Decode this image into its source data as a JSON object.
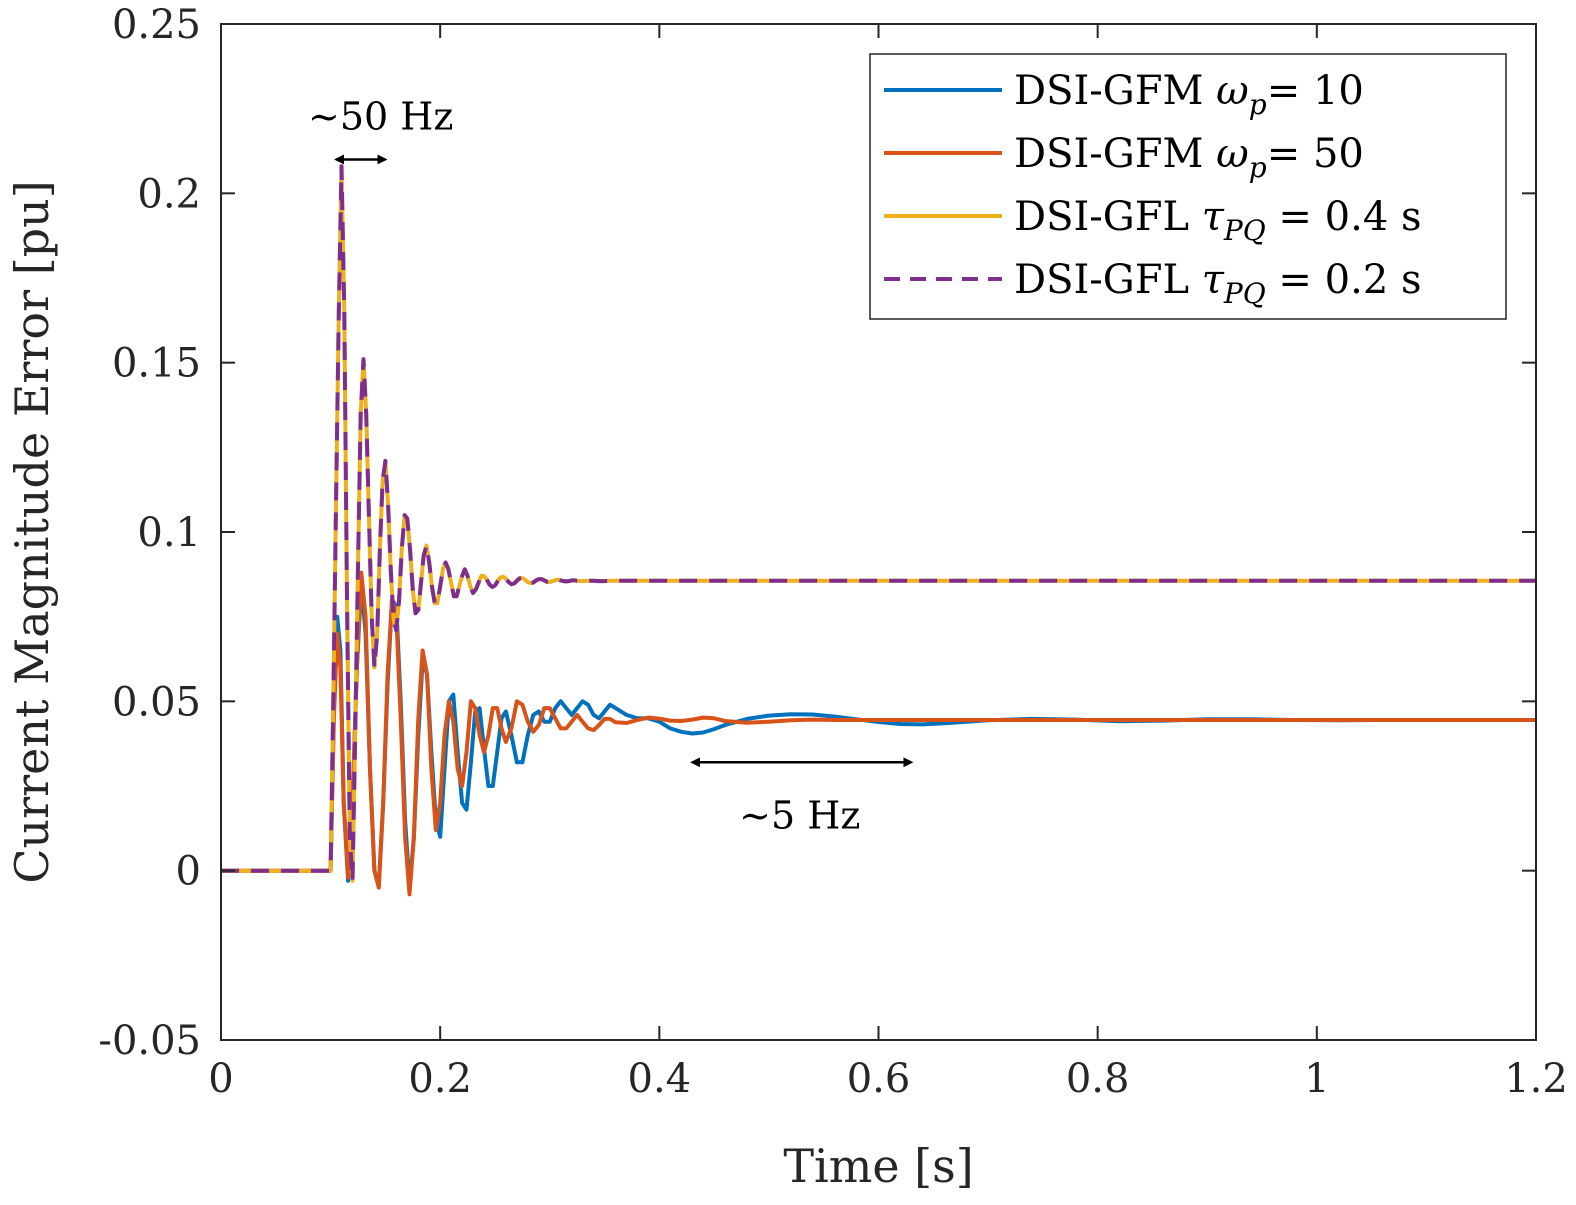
{
  "chart_data": {
    "type": "line",
    "title": "",
    "xlabel": "Time [s]",
    "ylabel": "Current Magnitude Error [pu]",
    "xlim": [
      0,
      1.2
    ],
    "ylim": [
      -0.05,
      0.25
    ],
    "xticks": [
      0,
      0.2,
      0.4,
      0.6,
      0.8,
      1.0,
      1.2
    ],
    "xtick_labels": [
      "0",
      "0.2",
      "0.4",
      "0.6",
      "0.8",
      "1",
      "1.2"
    ],
    "yticks": [
      -0.05,
      0,
      0.05,
      0.1,
      0.15,
      0.2,
      0.25
    ],
    "ytick_labels": [
      "-0.05",
      "0",
      "0.05",
      "0.1",
      "0.15",
      "0.2",
      "0.25"
    ],
    "grid": false,
    "legend_position": "top-right",
    "series": [
      {
        "name": "DSI-GFM ωp= 10",
        "legend_label": "DSI-GFM ",
        "legend_math": "ω",
        "legend_sub": "p",
        "legend_tail": "= 10",
        "color": "#0072BD",
        "dash": "solid",
        "x": [
          0,
          0.098,
          0.1,
          0.103,
          0.106,
          0.109,
          0.112,
          0.116,
          0.12,
          0.124,
          0.128,
          0.132,
          0.136,
          0.14,
          0.144,
          0.148,
          0.152,
          0.156,
          0.16,
          0.164,
          0.168,
          0.172,
          0.176,
          0.18,
          0.184,
          0.188,
          0.192,
          0.196,
          0.2,
          0.204,
          0.208,
          0.212,
          0.216,
          0.22,
          0.224,
          0.228,
          0.232,
          0.236,
          0.24,
          0.244,
          0.248,
          0.252,
          0.256,
          0.26,
          0.265,
          0.27,
          0.275,
          0.28,
          0.285,
          0.29,
          0.295,
          0.3,
          0.305,
          0.31,
          0.315,
          0.32,
          0.325,
          0.33,
          0.335,
          0.34,
          0.345,
          0.35,
          0.355,
          0.36,
          0.37,
          0.38,
          0.39,
          0.4,
          0.41,
          0.42,
          0.43,
          0.44,
          0.45,
          0.46,
          0.48,
          0.5,
          0.52,
          0.54,
          0.56,
          0.58,
          0.6,
          0.62,
          0.64,
          0.66,
          0.68,
          0.7,
          0.74,
          0.78,
          0.82,
          0.86,
          0.9,
          0.94,
          0.98,
          1.02,
          1.06,
          1.1,
          1.15,
          1.2
        ],
        "y": [
          0,
          0,
          0,
          0.05,
          0.075,
          0.065,
          0.02,
          -0.003,
          0.02,
          0.06,
          0.085,
          0.07,
          0.03,
          0.0,
          -0.004,
          0.02,
          0.055,
          0.08,
          0.078,
          0.05,
          0.015,
          -0.005,
          0.01,
          0.04,
          0.062,
          0.058,
          0.035,
          0.015,
          0.01,
          0.03,
          0.05,
          0.052,
          0.035,
          0.02,
          0.018,
          0.032,
          0.047,
          0.048,
          0.036,
          0.025,
          0.025,
          0.035,
          0.045,
          0.047,
          0.04,
          0.032,
          0.032,
          0.04,
          0.046,
          0.047,
          0.044,
          0.044,
          0.048,
          0.05,
          0.048,
          0.046,
          0.048,
          0.05,
          0.049,
          0.046,
          0.045,
          0.047,
          0.049,
          0.048,
          0.046,
          0.045,
          0.045,
          0.044,
          0.042,
          0.041,
          0.0405,
          0.0408,
          0.0418,
          0.043,
          0.0448,
          0.0458,
          0.0462,
          0.0461,
          0.0455,
          0.0447,
          0.0439,
          0.0433,
          0.0432,
          0.0435,
          0.044,
          0.0444,
          0.0448,
          0.0446,
          0.0441,
          0.0443,
          0.0447,
          0.0447,
          0.0445,
          0.0444,
          0.0445,
          0.0445,
          0.0445,
          0.0445
        ]
      },
      {
        "name": "DSI-GFM ωp= 50",
        "legend_label": "DSI-GFM ",
        "legend_math": "ω",
        "legend_sub": "p",
        "legend_tail": "= 50",
        "color": "#D95319",
        "dash": "solid",
        "x": [
          0,
          0.098,
          0.1,
          0.103,
          0.106,
          0.109,
          0.112,
          0.116,
          0.12,
          0.124,
          0.128,
          0.132,
          0.136,
          0.14,
          0.144,
          0.148,
          0.152,
          0.156,
          0.16,
          0.164,
          0.168,
          0.172,
          0.176,
          0.18,
          0.184,
          0.188,
          0.192,
          0.196,
          0.2,
          0.204,
          0.208,
          0.212,
          0.216,
          0.22,
          0.224,
          0.228,
          0.232,
          0.236,
          0.24,
          0.244,
          0.248,
          0.252,
          0.256,
          0.26,
          0.265,
          0.27,
          0.275,
          0.28,
          0.285,
          0.29,
          0.295,
          0.3,
          0.305,
          0.31,
          0.315,
          0.32,
          0.325,
          0.33,
          0.335,
          0.34,
          0.345,
          0.35,
          0.355,
          0.36,
          0.37,
          0.38,
          0.39,
          0.4,
          0.41,
          0.42,
          0.43,
          0.44,
          0.45,
          0.46,
          0.48,
          0.5,
          0.52,
          0.54,
          0.56,
          0.58,
          0.6,
          0.62,
          0.64,
          0.66,
          0.68,
          0.7,
          0.74,
          0.78,
          0.82,
          0.86,
          0.9,
          0.94,
          0.98,
          1.02,
          1.06,
          1.1,
          1.15,
          1.2
        ],
        "y": [
          0,
          0,
          0,
          0.045,
          0.07,
          0.06,
          0.02,
          -0.002,
          0.02,
          0.06,
          0.088,
          0.075,
          0.03,
          0.0,
          -0.005,
          0.02,
          0.058,
          0.08,
          0.075,
          0.045,
          0.01,
          -0.007,
          0.01,
          0.045,
          0.065,
          0.058,
          0.03,
          0.012,
          0.02,
          0.04,
          0.05,
          0.044,
          0.03,
          0.025,
          0.035,
          0.05,
          0.048,
          0.04,
          0.035,
          0.04,
          0.048,
          0.048,
          0.042,
          0.038,
          0.042,
          0.05,
          0.049,
          0.044,
          0.041,
          0.043,
          0.048,
          0.048,
          0.045,
          0.042,
          0.042,
          0.044,
          0.046,
          0.044,
          0.042,
          0.0415,
          0.043,
          0.0448,
          0.0448,
          0.0438,
          0.0436,
          0.0445,
          0.0452,
          0.0449,
          0.0443,
          0.0442,
          0.0446,
          0.0452,
          0.045,
          0.0442,
          0.0437,
          0.044,
          0.0444,
          0.0446,
          0.0445,
          0.0445,
          0.0445,
          0.0445,
          0.0445,
          0.0445,
          0.0445,
          0.0445,
          0.0445,
          0.0445,
          0.0445,
          0.0445,
          0.0445,
          0.0445,
          0.0445,
          0.0445,
          0.0445,
          0.0445,
          0.0445,
          0.0445
        ]
      },
      {
        "name": "DSI-GFL τPQ = 0.4 s",
        "legend_label": "DSI-GFL ",
        "legend_math": "τ",
        "legend_sub": "PQ",
        "legend_tail": " = 0.4 s",
        "color": "#EDB120",
        "dash": "solid",
        "x": [
          0,
          0.098,
          0.1,
          0.1025,
          0.105,
          0.1075,
          0.11,
          0.1125,
          0.115,
          0.1175,
          0.12,
          0.1225,
          0.125,
          0.1275,
          0.13,
          0.1325,
          0.135,
          0.1375,
          0.14,
          0.1425,
          0.145,
          0.1475,
          0.15,
          0.1525,
          0.155,
          0.1575,
          0.16,
          0.1625,
          0.165,
          0.1675,
          0.17,
          0.1725,
          0.175,
          0.1775,
          0.18,
          0.1825,
          0.185,
          0.1875,
          0.19,
          0.1925,
          0.195,
          0.1975,
          0.2,
          0.2025,
          0.205,
          0.2075,
          0.21,
          0.2125,
          0.215,
          0.2175,
          0.22,
          0.2225,
          0.225,
          0.2275,
          0.23,
          0.2325,
          0.235,
          0.2375,
          0.24,
          0.2425,
          0.245,
          0.2475,
          0.25,
          0.2525,
          0.255,
          0.2575,
          0.26,
          0.2625,
          0.265,
          0.2675,
          0.27,
          0.2725,
          0.275,
          0.2775,
          0.28,
          0.2825,
          0.285,
          0.2875,
          0.29,
          0.2925,
          0.295,
          0.2975,
          0.3,
          0.3025,
          0.305,
          0.3075,
          0.31,
          0.3125,
          0.315,
          0.3175,
          0.32,
          0.3225,
          0.325,
          0.3275,
          0.33,
          0.335,
          0.34,
          0.345,
          0.35,
          0.355,
          0.36,
          0.37,
          0.38,
          0.39,
          0.4,
          0.5,
          0.6,
          0.7,
          0.8,
          0.9,
          1.0,
          1.1,
          1.2
        ],
        "y": [
          0,
          0,
          0,
          0.05,
          0.11,
          0.165,
          0.208,
          0.165,
          0.08,
          0.01,
          -0.003,
          0.04,
          0.09,
          0.135,
          0.151,
          0.135,
          0.105,
          0.075,
          0.06,
          0.07,
          0.095,
          0.115,
          0.121,
          0.108,
          0.088,
          0.074,
          0.071,
          0.08,
          0.095,
          0.105,
          0.104,
          0.095,
          0.083,
          0.076,
          0.077,
          0.085,
          0.093,
          0.096,
          0.091,
          0.084,
          0.079,
          0.079,
          0.084,
          0.089,
          0.091,
          0.089,
          0.085,
          0.081,
          0.081,
          0.084,
          0.087,
          0.089,
          0.087,
          0.084,
          0.082,
          0.083,
          0.085,
          0.087,
          0.087,
          0.086,
          0.0845,
          0.0838,
          0.0842,
          0.0855,
          0.0866,
          0.0868,
          0.0862,
          0.0852,
          0.0846,
          0.0848,
          0.0856,
          0.0863,
          0.0864,
          0.0859,
          0.0852,
          0.0849,
          0.0851,
          0.0857,
          0.0861,
          0.0861,
          0.0857,
          0.0853,
          0.0852,
          0.0855,
          0.0858,
          0.0859,
          0.0857,
          0.0855,
          0.0854,
          0.0855,
          0.0857,
          0.0857,
          0.0856,
          0.0855,
          0.0855,
          0.0856,
          0.0856,
          0.0855,
          0.0855,
          0.0856,
          0.0856,
          0.0856,
          0.0856,
          0.0856,
          0.0856,
          0.0856,
          0.0856,
          0.0856,
          0.0856,
          0.0856,
          0.0856,
          0.0856,
          0.0856
        ]
      },
      {
        "name": "DSI-GFL τPQ = 0.2 s",
        "legend_label": "DSI-GFL ",
        "legend_math": "τ",
        "legend_sub": "PQ",
        "legend_tail": " = 0.2 s",
        "color": "#7E2F8E",
        "dash": "dashed",
        "x": [
          0,
          0.098,
          0.1,
          0.1025,
          0.105,
          0.1075,
          0.11,
          0.1125,
          0.115,
          0.1175,
          0.12,
          0.1225,
          0.125,
          0.1275,
          0.13,
          0.1325,
          0.135,
          0.1375,
          0.14,
          0.1425,
          0.145,
          0.1475,
          0.15,
          0.1525,
          0.155,
          0.1575,
          0.16,
          0.1625,
          0.165,
          0.1675,
          0.17,
          0.1725,
          0.175,
          0.1775,
          0.18,
          0.1825,
          0.185,
          0.1875,
          0.19,
          0.1925,
          0.195,
          0.1975,
          0.2,
          0.2025,
          0.205,
          0.2075,
          0.21,
          0.2125,
          0.215,
          0.2175,
          0.22,
          0.2225,
          0.225,
          0.2275,
          0.23,
          0.2325,
          0.235,
          0.2375,
          0.24,
          0.2425,
          0.245,
          0.2475,
          0.25,
          0.2525,
          0.255,
          0.2575,
          0.26,
          0.2625,
          0.265,
          0.2675,
          0.27,
          0.2725,
          0.275,
          0.2775,
          0.28,
          0.2825,
          0.285,
          0.2875,
          0.29,
          0.2925,
          0.295,
          0.2975,
          0.3,
          0.3025,
          0.305,
          0.3075,
          0.31,
          0.3125,
          0.315,
          0.3175,
          0.32,
          0.3225,
          0.325,
          0.3275,
          0.33,
          0.335,
          0.34,
          0.345,
          0.35,
          0.355,
          0.36,
          0.37,
          0.38,
          0.39,
          0.4,
          0.5,
          0.6,
          0.7,
          0.8,
          0.9,
          1.0,
          1.1,
          1.2
        ],
        "y": [
          0,
          0,
          0,
          0.05,
          0.11,
          0.165,
          0.208,
          0.165,
          0.08,
          0.01,
          -0.003,
          0.04,
          0.09,
          0.135,
          0.151,
          0.135,
          0.105,
          0.075,
          0.06,
          0.07,
          0.095,
          0.115,
          0.121,
          0.108,
          0.088,
          0.074,
          0.071,
          0.08,
          0.095,
          0.105,
          0.104,
          0.095,
          0.083,
          0.076,
          0.077,
          0.085,
          0.093,
          0.096,
          0.091,
          0.084,
          0.079,
          0.079,
          0.084,
          0.089,
          0.091,
          0.089,
          0.085,
          0.081,
          0.081,
          0.084,
          0.087,
          0.089,
          0.087,
          0.084,
          0.082,
          0.083,
          0.085,
          0.087,
          0.087,
          0.086,
          0.0845,
          0.0838,
          0.0842,
          0.0855,
          0.0866,
          0.0868,
          0.0862,
          0.0852,
          0.0846,
          0.0848,
          0.0856,
          0.0863,
          0.0864,
          0.0859,
          0.0852,
          0.0849,
          0.0851,
          0.0857,
          0.0861,
          0.0861,
          0.0857,
          0.0853,
          0.0852,
          0.0855,
          0.0858,
          0.0859,
          0.0857,
          0.0855,
          0.0854,
          0.0855,
          0.0857,
          0.0857,
          0.0856,
          0.0855,
          0.0855,
          0.0856,
          0.0856,
          0.0855,
          0.0855,
          0.0856,
          0.0856,
          0.0856,
          0.0856,
          0.0856,
          0.0856,
          0.0856,
          0.0856,
          0.0856,
          0.0856,
          0.0856,
          0.0856,
          0.0856,
          0.0856
        ]
      }
    ],
    "annotations": [
      {
        "text": "~50 Hz",
        "arrow_x": [
          0.105,
          0.15
        ],
        "arrow_y": 0.21
      },
      {
        "text": "~5 Hz",
        "arrow_x": [
          0.43,
          0.63
        ],
        "arrow_y": 0.032
      }
    ]
  }
}
